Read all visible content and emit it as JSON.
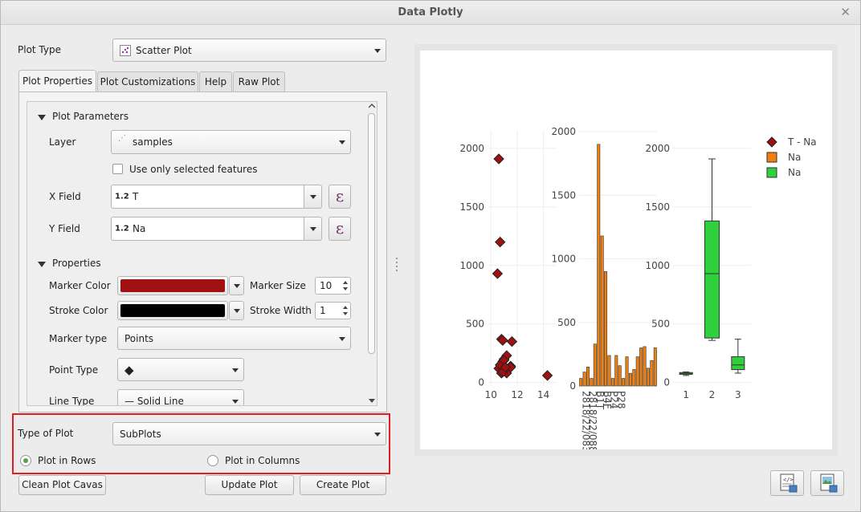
{
  "window": {
    "title": "Data Plotly",
    "close_glyph": "✕"
  },
  "plot_type": {
    "label": "Plot Type",
    "value": "Scatter Plot"
  },
  "tabs": [
    {
      "label": "Plot Properties"
    },
    {
      "label": "Plot Customizations"
    },
    {
      "label": "Help"
    },
    {
      "label": "Raw Plot"
    }
  ],
  "plot_parameters": {
    "section_label": "Plot Parameters",
    "layer_label": "Layer",
    "layer_value": "samples",
    "selected_only_label": "Use only selected features",
    "x_field_label": "X Field",
    "x_field_type": "1.2",
    "x_field_value": "T",
    "y_field_label": "Y Field",
    "y_field_type": "1.2",
    "y_field_value": "Na",
    "expression_glyph": "ε"
  },
  "properties": {
    "section_label": "Properties",
    "marker_color_label": "Marker Color",
    "marker_color": "#a01010",
    "marker_size_label": "Marker Size",
    "marker_size": "10",
    "stroke_color_label": "Stroke Color",
    "stroke_color": "#000000",
    "stroke_width_label": "Stroke Width",
    "stroke_width": "1",
    "marker_type_label": "Marker type",
    "marker_type": "Points",
    "point_type_label": "Point Type",
    "point_type_glyph": "◆",
    "line_type_label": "Line Type",
    "line_type": "— Solid Line"
  },
  "type_of_plot": {
    "label": "Type of Plot",
    "value": "SubPlots",
    "rows_label": "Plot in Rows",
    "columns_label": "Plot in Columns",
    "selected": "rows"
  },
  "buttons": {
    "clean": "Clean Plot Cavas",
    "update": "Update Plot",
    "create": "Create Plot"
  },
  "chart_data": [
    {
      "type": "scatter",
      "name": "T - Na",
      "color": "#a01010",
      "x": [
        10.5,
        10.7,
        10.6,
        10.8,
        10.9,
        11.0,
        10.6,
        10.8,
        10.9,
        11.0,
        10.7,
        11.2,
        11.5,
        11.5,
        11.6,
        11.2,
        11.0,
        14.3,
        10.9,
        11.1
      ],
      "y": [
        930,
        1200,
        1910,
        370,
        360,
        200,
        120,
        80,
        180,
        100,
        150,
        230,
        140,
        130,
        350,
        80,
        190,
        60,
        90,
        130
      ],
      "xticks": [
        10,
        12,
        14
      ],
      "xlim": [
        9.8,
        15.0
      ],
      "yticks": [
        0,
        500,
        1000,
        1500,
        2000
      ],
      "ylim": [
        -30,
        2150
      ]
    },
    {
      "type": "bar",
      "name": "Na",
      "color": "#f07f0e",
      "categories": [
        "2818/22/083",
        "",
        "2818/22/088",
        "",
        "B1T",
        "",
        "B4F",
        "",
        "P24",
        "",
        "P28",
        "",
        "",
        "",
        "",
        "",
        "",
        "",
        "",
        "",
        "",
        ""
      ],
      "tick_labels": [
        "2818/22/083",
        "2818/22/088",
        "B1T",
        "B4F",
        "P24",
        "P28"
      ],
      "values": [
        60,
        110,
        150,
        60,
        330,
        1900,
        1180,
        900,
        240,
        60,
        240,
        160,
        60,
        230,
        100,
        130,
        230,
        300,
        310,
        140,
        200,
        300
      ],
      "yticks": [
        0,
        500,
        1000,
        1500,
        2000
      ],
      "ylim": [
        0,
        2000
      ]
    },
    {
      "type": "box",
      "name": "Na",
      "color": "#2ed13c",
      "categories": [
        "1",
        "2",
        "3"
      ],
      "boxes": [
        {
          "min": 60,
          "q1": 70,
          "median": 75,
          "q3": 85,
          "max": 90
        },
        {
          "min": 360,
          "q1": 380,
          "median": 930,
          "q3": 1380,
          "max": 1910
        },
        {
          "min": 80,
          "q1": 110,
          "median": 150,
          "q3": 220,
          "max": 370
        }
      ],
      "yticks": [
        0,
        500,
        1000,
        1500,
        2000
      ],
      "ylim": [
        -30,
        2150
      ]
    }
  ],
  "legend": [
    {
      "label": "T - Na",
      "color": "#a01010",
      "shape": "diamond"
    },
    {
      "label": "Na",
      "color": "#f07f0e",
      "shape": "square"
    },
    {
      "label": "Na",
      "color": "#2ed13c",
      "shape": "square"
    }
  ],
  "icons": {
    "html_export": "html-export-icon",
    "image_export": "image-export-icon"
  }
}
